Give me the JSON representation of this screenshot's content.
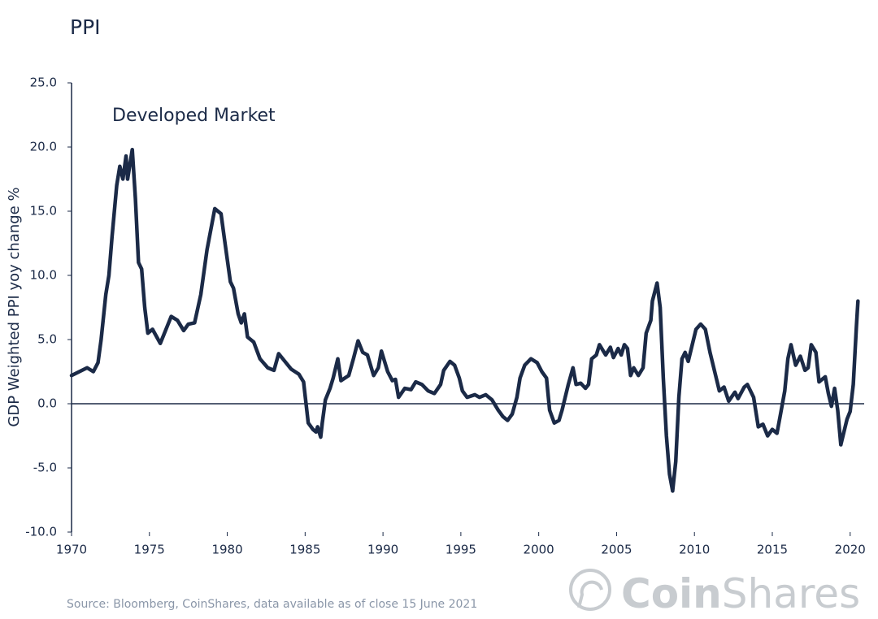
{
  "chart_data": {
    "type": "line",
    "title": "PPI",
    "annotation": "Developed Market",
    "y_label": "GDP Weighted  PPI yoy change %",
    "source": "Source: Bloomberg, CoinShares, data available as of close 15 June 2021",
    "logo_bold": "Coin",
    "logo_light": "Shares",
    "color": "#1b2a47",
    "xlim": [
      1970,
      2020.9
    ],
    "ylim": [
      -10,
      25
    ],
    "xticks": [
      1970,
      1975,
      1980,
      1985,
      1990,
      1995,
      2000,
      2005,
      2010,
      2015,
      2020
    ],
    "yticks": [
      {
        "value": -10,
        "label": "-10.0"
      },
      {
        "value": -5,
        "label": "-5.0"
      },
      {
        "value": 0,
        "label": "0.0"
      },
      {
        "value": 5,
        "label": "5.0"
      },
      {
        "value": 10,
        "label": "10.0"
      },
      {
        "value": 15,
        "label": "15.0"
      },
      {
        "value": 20,
        "label": "20.0"
      },
      {
        "value": 25,
        "label": "25.0"
      }
    ],
    "x": [
      1970.0,
      1970.5,
      1971.0,
      1971.4,
      1971.7,
      1971.9,
      1972.2,
      1972.4,
      1972.6,
      1972.9,
      1973.1,
      1973.3,
      1973.5,
      1973.6,
      1973.9,
      1974.1,
      1974.3,
      1974.5,
      1974.7,
      1974.9,
      1975.2,
      1975.7,
      1976.4,
      1976.8,
      1977.2,
      1977.5,
      1977.9,
      1978.3,
      1978.7,
      1979.2,
      1979.6,
      1979.8,
      1980.2,
      1980.4,
      1980.7,
      1980.9,
      1981.1,
      1981.3,
      1981.7,
      1982.1,
      1982.6,
      1983.0,
      1983.3,
      1983.7,
      1984.1,
      1984.6,
      1984.9,
      1985.2,
      1985.5,
      1985.7,
      1985.8,
      1986.0,
      1986.1,
      1986.3,
      1986.6,
      1986.8,
      1987.1,
      1987.3,
      1987.8,
      1988.1,
      1988.4,
      1988.7,
      1989.0,
      1989.4,
      1989.7,
      1989.9,
      1990.3,
      1990.6,
      1990.8,
      1991.0,
      1991.4,
      1991.8,
      1992.1,
      1992.5,
      1992.9,
      1993.3,
      1993.7,
      1993.9,
      1994.3,
      1994.6,
      1994.9,
      1995.1,
      1995.4,
      1995.9,
      1996.2,
      1996.6,
      1997.0,
      1997.4,
      1997.7,
      1998.0,
      1998.3,
      1998.6,
      1998.8,
      1999.1,
      1999.5,
      1999.9,
      2000.2,
      2000.5,
      2000.7,
      2001.0,
      2001.3,
      2001.5,
      2001.9,
      2002.2,
      2002.4,
      2002.7,
      2003.0,
      2003.2,
      2003.4,
      2003.7,
      2003.9,
      2004.3,
      2004.6,
      2004.8,
      2005.1,
      2005.3,
      2005.5,
      2005.7,
      2005.9,
      2006.1,
      2006.4,
      2006.7,
      2006.9,
      2007.2,
      2007.3,
      2007.6,
      2007.8,
      2008.0,
      2008.2,
      2008.4,
      2008.6,
      2008.8,
      2009.0,
      2009.2,
      2009.4,
      2009.6,
      2009.8,
      2010.1,
      2010.4,
      2010.7,
      2011.0,
      2011.4,
      2011.6,
      2011.9,
      2012.2,
      2012.6,
      2012.8,
      2013.2,
      2013.4,
      2013.8,
      2014.1,
      2014.4,
      2014.7,
      2015.0,
      2015.3,
      2015.5,
      2015.8,
      2016.0,
      2016.2,
      2016.5,
      2016.8,
      2017.1,
      2017.3,
      2017.5,
      2017.8,
      2018.0,
      2018.4,
      2018.6,
      2018.8,
      2019.0,
      2019.2,
      2019.4,
      2019.6,
      2019.8,
      2020.0,
      2020.2,
      2020.4,
      2020.5
    ],
    "values": [
      2.2,
      2.5,
      2.8,
      2.5,
      3.2,
      5,
      8.5,
      10,
      13,
      17,
      18.5,
      17.5,
      19.3,
      17.5,
      19.8,
      16,
      11,
      10.5,
      7.5,
      5.5,
      5.8,
      4.7,
      6.8,
      6.5,
      5.7,
      6.2,
      6.3,
      8.5,
      12,
      15.2,
      14.8,
      13,
      9.5,
      9,
      7,
      6.3,
      7,
      5.2,
      4.8,
      3.5,
      2.8,
      2.6,
      3.9,
      3.3,
      2.7,
      2.3,
      1.7,
      -1.5,
      -2.0,
      -2.2,
      -1.8,
      -2.6,
      -1.5,
      0.3,
      1.2,
      2,
      3.5,
      1.8,
      2.2,
      3.5,
      4.9,
      4,
      3.8,
      2.2,
      2.8,
      4.1,
      2.5,
      1.8,
      1.9,
      0.5,
      1.2,
      1.1,
      1.7,
      1.5,
      1.0,
      0.8,
      1.5,
      2.6,
      3.3,
      3.0,
      2.0,
      1.0,
      0.5,
      0.7,
      0.5,
      0.7,
      0.3,
      -0.5,
      -1.0,
      -1.3,
      -0.8,
      0.5,
      2,
      3.0,
      3.5,
      3.2,
      2.5,
      2.0,
      -0.5,
      -1.5,
      -1.3,
      -0.5,
      1.5,
      2.8,
      1.5,
      1.6,
      1.2,
      1.5,
      3.5,
      3.8,
      4.6,
      3.8,
      4.4,
      3.6,
      4.3,
      3.8,
      4.6,
      4.3,
      2.2,
      2.8,
      2.2,
      2.8,
      5.5,
      6.5,
      8,
      9.4,
      7.5,
      2.0,
      -2.5,
      -5.5,
      -6.8,
      -4.5,
      0.5,
      3.5,
      4.0,
      3.3,
      4.3,
      5.8,
      6.2,
      5.8,
      4,
      2.0,
      1.0,
      1.3,
      0.2,
      0.9,
      0.4,
      1.3,
      1.5,
      0.5,
      -1.8,
      -1.6,
      -2.5,
      -2.0,
      -2.3,
      -1.0,
      1.0,
      3.5,
      4.6,
      3.0,
      3.7,
      2.6,
      2.8,
      4.6,
      4.0,
      1.7,
      2.1,
      0.8,
      -0.2,
      1.2,
      -0.5,
      -3.2,
      -2.2,
      -1.2,
      -0.6,
      1.5,
      6.0,
      8.0
    ]
  }
}
